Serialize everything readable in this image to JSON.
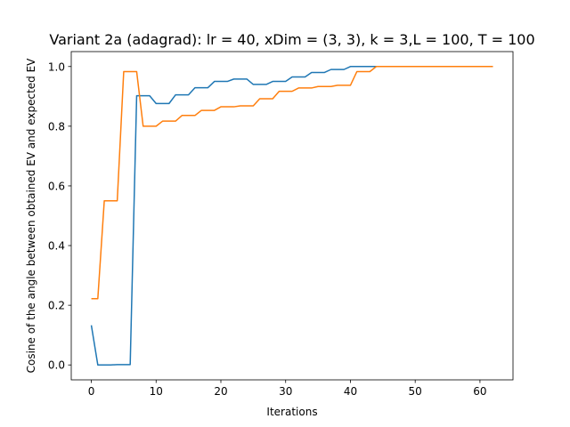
{
  "chart_data": {
    "type": "line",
    "title": "Variant 2a (adagrad): lr = 40, xDim = (3, 3), k = 3,L = 100, T = 100",
    "xlabel": "Iterations",
    "ylabel": "Cosine of the angle between obtained EV and expected EV",
    "xlim": [
      -3.1,
      65.1
    ],
    "ylim": [
      -0.05,
      1.05
    ],
    "xticks": [
      0,
      10,
      20,
      30,
      40,
      50,
      60
    ],
    "yticks": [
      0.0,
      0.2,
      0.4,
      0.6,
      0.8,
      1.0
    ],
    "xtick_labels": [
      "0",
      "10",
      "20",
      "30",
      "40",
      "50",
      "60"
    ],
    "ytick_labels": [
      "0.0",
      "0.2",
      "0.4",
      "0.6",
      "0.8",
      "1.0"
    ],
    "grid": false,
    "legend": "none",
    "x": [
      0,
      1,
      2,
      3,
      4,
      5,
      6,
      7,
      8,
      9,
      10,
      11,
      12,
      13,
      14,
      15,
      16,
      17,
      18,
      19,
      20,
      21,
      22,
      23,
      24,
      25,
      26,
      27,
      28,
      29,
      30,
      31,
      32,
      33,
      34,
      35,
      36,
      37,
      38,
      39,
      40,
      41,
      42,
      43,
      44,
      45,
      46,
      47,
      48,
      49,
      50,
      51,
      52,
      53,
      54,
      55,
      56,
      57,
      58,
      59,
      60,
      61,
      62
    ],
    "series": [
      {
        "color": "#1f77b4",
        "values": [
          0.133,
          0.0,
          0.0,
          0.0,
          0.001,
          0.001,
          0.001,
          0.902,
          0.902,
          0.902,
          0.876,
          0.876,
          0.876,
          0.905,
          0.905,
          0.905,
          0.929,
          0.929,
          0.929,
          0.95,
          0.95,
          0.95,
          0.958,
          0.958,
          0.958,
          0.94,
          0.94,
          0.94,
          0.95,
          0.95,
          0.95,
          0.965,
          0.965,
          0.965,
          0.98,
          0.98,
          0.98,
          0.99,
          0.99,
          0.99,
          1.0,
          1.0,
          1.0,
          1.0,
          1.0,
          1.0,
          1.0,
          1.0,
          1.0,
          1.0,
          1.0,
          1.0,
          1.0,
          1.0,
          1.0,
          1.0,
          1.0,
          1.0,
          1.0,
          1.0,
          1.0,
          1.0,
          1.0
        ]
      },
      {
        "color": "#ff7f0e",
        "values": [
          0.222,
          0.222,
          0.55,
          0.55,
          0.55,
          0.983,
          0.983,
          0.983,
          0.8,
          0.8,
          0.8,
          0.817,
          0.817,
          0.817,
          0.836,
          0.836,
          0.836,
          0.853,
          0.853,
          0.853,
          0.865,
          0.865,
          0.865,
          0.868,
          0.868,
          0.868,
          0.892,
          0.892,
          0.892,
          0.917,
          0.917,
          0.917,
          0.928,
          0.928,
          0.928,
          0.933,
          0.933,
          0.933,
          0.937,
          0.937,
          0.937,
          0.983,
          0.983,
          0.983,
          1.0,
          1.0,
          1.0,
          1.0,
          1.0,
          1.0,
          1.0,
          1.0,
          1.0,
          1.0,
          1.0,
          1.0,
          1.0,
          1.0,
          1.0,
          1.0,
          1.0,
          1.0,
          1.0
        ]
      }
    ]
  }
}
